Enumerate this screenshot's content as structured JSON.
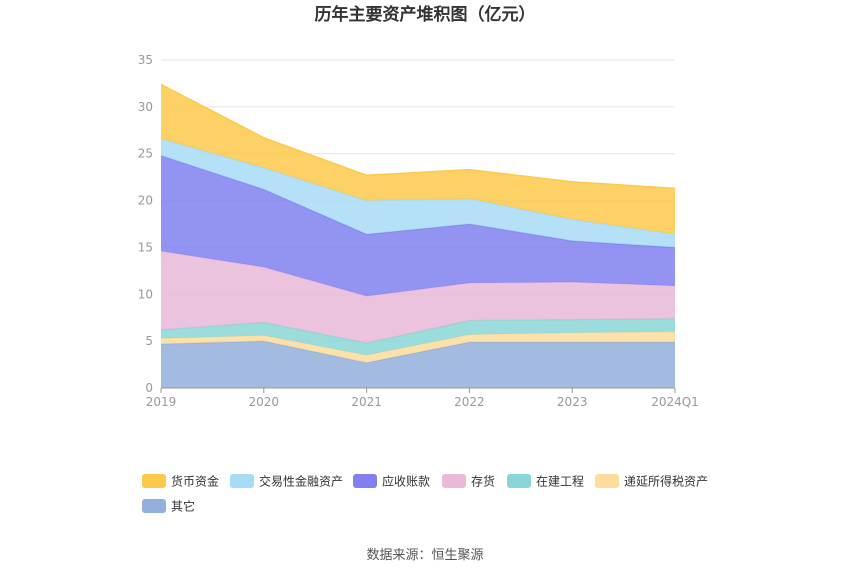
{
  "chart_data": {
    "type": "area",
    "stacked": true,
    "title": "历年主要资产堆积图（亿元）",
    "categories": [
      "2019",
      "2020",
      "2021",
      "2022",
      "2023",
      "2024Q1"
    ],
    "ylim": [
      0,
      35
    ],
    "yticks": [
      0,
      5,
      10,
      15,
      20,
      25,
      30,
      35
    ],
    "grid": true,
    "legend_position": "bottom-left",
    "series": [
      {
        "name": "其它",
        "color": "#93afdb",
        "values": [
          4.7,
          5.0,
          2.7,
          4.9,
          4.9,
          4.9
        ]
      },
      {
        "name": "递延所得税资产",
        "color": "#fddc9c",
        "values": [
          0.6,
          0.6,
          0.8,
          0.8,
          1.0,
          1.1
        ]
      },
      {
        "name": "在建工程",
        "color": "#8ad6d6",
        "values": [
          0.9,
          1.4,
          1.3,
          1.5,
          1.4,
          1.4
        ]
      },
      {
        "name": "存货",
        "color": "#e8b9d9",
        "values": [
          8.4,
          5.9,
          5.0,
          4.0,
          4.0,
          3.5
        ]
      },
      {
        "name": "应收账款",
        "color": "#8080f0",
        "values": [
          10.2,
          8.3,
          6.6,
          6.3,
          4.4,
          4.1
        ]
      },
      {
        "name": "交易性金融资产",
        "color": "#a7dcf7",
        "values": [
          1.8,
          2.3,
          3.6,
          2.7,
          2.3,
          1.4
        ]
      },
      {
        "name": "货币资金",
        "color": "#fdc94a",
        "values": [
          5.8,
          3.2,
          2.7,
          3.1,
          4.0,
          4.9
        ]
      }
    ],
    "legend_order": [
      "货币资金",
      "交易性金融资产",
      "应收账款",
      "存货",
      "在建工程",
      "递延所得税资产",
      "其它"
    ]
  },
  "source_label": "数据来源：恒生聚源"
}
